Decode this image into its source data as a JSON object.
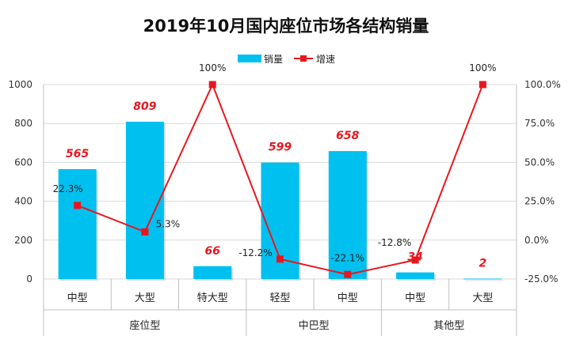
{
  "chart_data": {
    "type": "bar",
    "title": "2019年10月国内座位市场各结构销量",
    "categories": [
      "中型",
      "大型",
      "特大型",
      "轻型",
      "中型",
      "中型",
      "大型"
    ],
    "groups": [
      {
        "label": "座位型",
        "count": 3
      },
      {
        "label": "中巴型",
        "count": 2
      },
      {
        "label": "其他型",
        "count": 2
      }
    ],
    "series": [
      {
        "name": "销量",
        "type": "bar",
        "axis": "left",
        "color": "#00c0f0",
        "values": [
          565,
          809,
          66,
          599,
          658,
          34,
          2
        ],
        "labels": [
          "565",
          "809",
          "66",
          "599",
          "658",
          "34",
          "2"
        ]
      },
      {
        "name": "增速",
        "type": "line",
        "axis": "right",
        "color": "#e8171e",
        "values": [
          22.3,
          5.3,
          100,
          -12.2,
          -22.1,
          -12.8,
          100
        ],
        "labels": [
          "22.3%",
          "5.3%",
          "100%",
          "-12.2%",
          "-22.1%",
          "-12.8%",
          "100%"
        ]
      }
    ],
    "ylim_left": [
      0,
      1000
    ],
    "yticks_left": [
      "0",
      "200",
      "400",
      "600",
      "800",
      "1000"
    ],
    "ylim_right": [
      -25,
      100
    ],
    "yticks_right": [
      "-25.0%",
      "0.0%",
      "25.0%",
      "50.0%",
      "75.0%",
      "100.0%"
    ],
    "grid": true,
    "legend_position": "top"
  }
}
